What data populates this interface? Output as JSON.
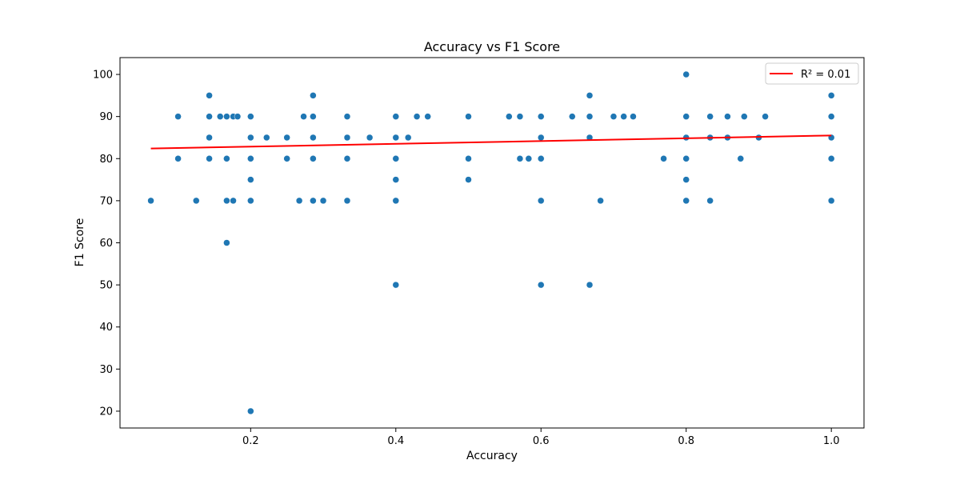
{
  "chart_data": {
    "type": "scatter",
    "title": "Accuracy vs F1 Score",
    "xlabel": "Accuracy",
    "ylabel": "F1 Score",
    "xlim": [
      0.02,
      1.045
    ],
    "ylim": [
      16,
      104
    ],
    "xticks": [
      0.2,
      0.4,
      0.6,
      0.8,
      1.0
    ],
    "xtick_labels": [
      "0.2",
      "0.4",
      "0.6",
      "0.8",
      "1.0"
    ],
    "yticks": [
      20,
      30,
      40,
      50,
      60,
      70,
      80,
      90,
      100
    ],
    "ytick_labels": [
      "20",
      "30",
      "40",
      "50",
      "60",
      "70",
      "80",
      "90",
      "100"
    ],
    "grid": false,
    "legend_position": "top-right",
    "points_color": "#1f77b4",
    "trend_color": "#ff0000",
    "trendline": {
      "label": "R² = 0.01",
      "x": [
        0.0625,
        1.0
      ],
      "y": [
        82.4,
        85.5
      ]
    },
    "points": [
      [
        0.0625,
        70
      ],
      [
        0.1,
        90
      ],
      [
        0.1,
        80
      ],
      [
        0.125,
        70
      ],
      [
        0.143,
        95
      ],
      [
        0.143,
        90
      ],
      [
        0.143,
        85
      ],
      [
        0.143,
        80
      ],
      [
        0.158,
        90
      ],
      [
        0.167,
        90
      ],
      [
        0.167,
        80
      ],
      [
        0.167,
        70
      ],
      [
        0.167,
        60
      ],
      [
        0.176,
        90
      ],
      [
        0.176,
        70
      ],
      [
        0.182,
        90
      ],
      [
        0.2,
        90
      ],
      [
        0.2,
        85
      ],
      [
        0.2,
        80
      ],
      [
        0.2,
        75
      ],
      [
        0.2,
        70
      ],
      [
        0.2,
        20
      ],
      [
        0.222,
        85
      ],
      [
        0.25,
        85
      ],
      [
        0.25,
        80
      ],
      [
        0.267,
        70
      ],
      [
        0.273,
        90
      ],
      [
        0.286,
        95
      ],
      [
        0.286,
        90
      ],
      [
        0.286,
        85
      ],
      [
        0.286,
        80
      ],
      [
        0.286,
        70
      ],
      [
        0.3,
        70
      ],
      [
        0.333,
        90
      ],
      [
        0.333,
        85
      ],
      [
        0.333,
        80
      ],
      [
        0.333,
        70
      ],
      [
        0.364,
        85
      ],
      [
        0.4,
        90
      ],
      [
        0.4,
        85
      ],
      [
        0.4,
        80
      ],
      [
        0.4,
        75
      ],
      [
        0.4,
        70
      ],
      [
        0.4,
        50
      ],
      [
        0.417,
        85
      ],
      [
        0.429,
        90
      ],
      [
        0.444,
        90
      ],
      [
        0.5,
        90
      ],
      [
        0.5,
        80
      ],
      [
        0.5,
        75
      ],
      [
        0.556,
        90
      ],
      [
        0.571,
        90
      ],
      [
        0.571,
        80
      ],
      [
        0.583,
        80
      ],
      [
        0.6,
        90
      ],
      [
        0.6,
        85
      ],
      [
        0.6,
        80
      ],
      [
        0.6,
        70
      ],
      [
        0.6,
        50
      ],
      [
        0.643,
        90
      ],
      [
        0.667,
        95
      ],
      [
        0.667,
        90
      ],
      [
        0.667,
        85
      ],
      [
        0.667,
        50
      ],
      [
        0.682,
        70
      ],
      [
        0.7,
        90
      ],
      [
        0.714,
        90
      ],
      [
        0.727,
        90
      ],
      [
        0.769,
        80
      ],
      [
        0.8,
        100
      ],
      [
        0.8,
        90
      ],
      [
        0.8,
        85
      ],
      [
        0.8,
        80
      ],
      [
        0.8,
        75
      ],
      [
        0.8,
        70
      ],
      [
        0.833,
        90
      ],
      [
        0.833,
        85
      ],
      [
        0.833,
        70
      ],
      [
        0.857,
        90
      ],
      [
        0.857,
        85
      ],
      [
        0.875,
        80
      ],
      [
        0.88,
        90
      ],
      [
        0.9,
        85
      ],
      [
        0.909,
        90
      ],
      [
        1.0,
        95
      ],
      [
        1.0,
        90
      ],
      [
        1.0,
        85
      ],
      [
        1.0,
        80
      ],
      [
        1.0,
        70
      ]
    ]
  }
}
